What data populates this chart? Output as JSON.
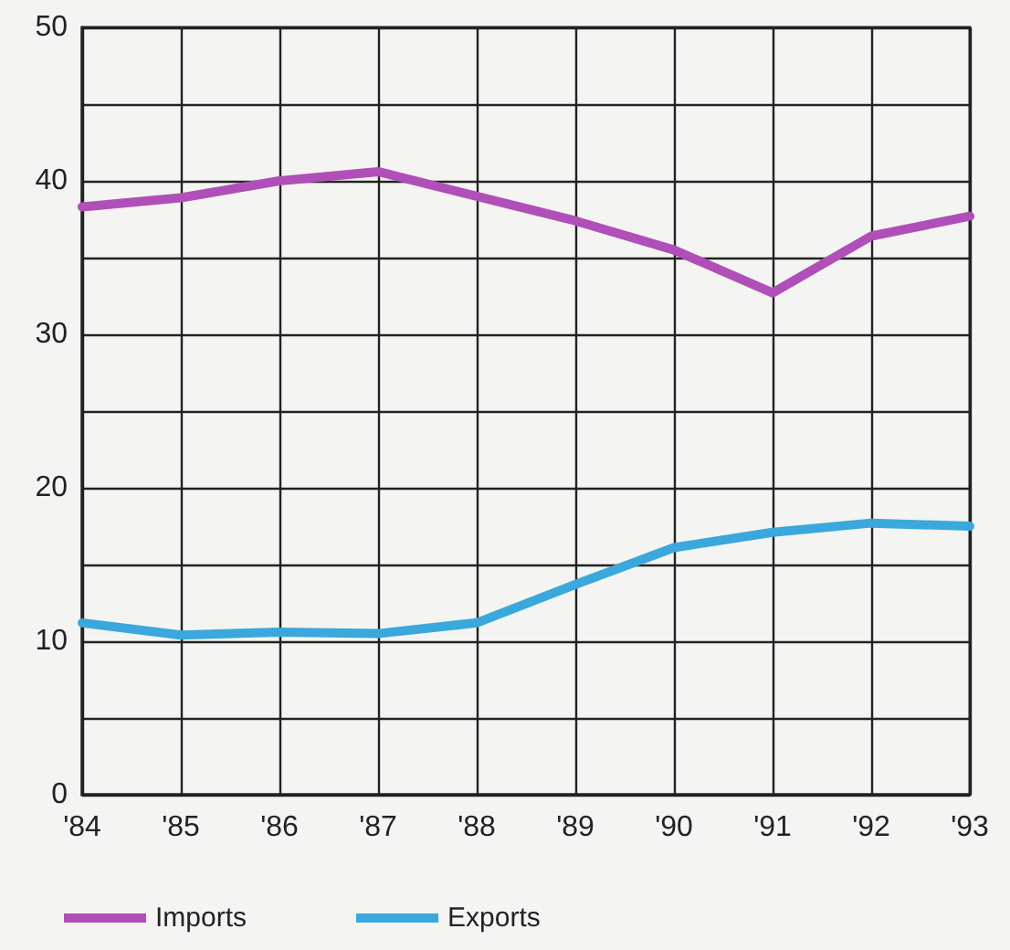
{
  "chart_data": {
    "type": "line",
    "categories": [
      "'84",
      "'85",
      "'86",
      "'87",
      "'88",
      "'89",
      "'90",
      "'91",
      "'92",
      "'93"
    ],
    "series": [
      {
        "name": "Imports",
        "color": "#b04fb8",
        "values": [
          38.3,
          38.9,
          40,
          40.6,
          39,
          37.4,
          35.5,
          32.7,
          36.4,
          37.7
        ]
      },
      {
        "name": "Exports",
        "color": "#3aa8dc",
        "values": [
          11.2,
          10.4,
          10.6,
          10.5,
          11.2,
          13.7,
          16.1,
          17.1,
          17.7,
          17.5
        ]
      }
    ],
    "ylim": [
      0,
      50
    ],
    "yticks": [
      0,
      {
        "value": 5,
        "label": null
      },
      10,
      {
        "value": 15,
        "label": null
      },
      20,
      {
        "value": 25,
        "label": null
      },
      30,
      {
        "value": 35,
        "label": null
      },
      40,
      {
        "value": 45,
        "label": null
      },
      50
    ],
    "grid": true,
    "legend": "bottom",
    "marker": "none",
    "line_style": "solid"
  }
}
